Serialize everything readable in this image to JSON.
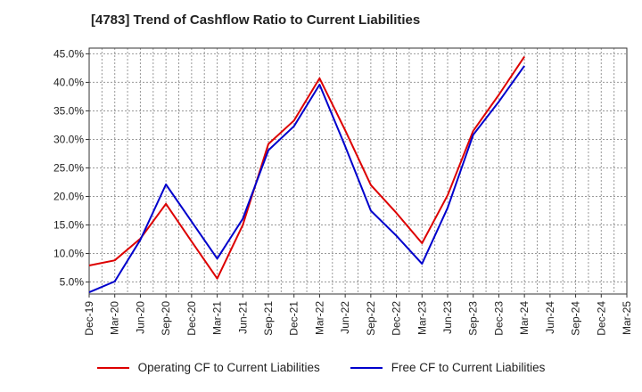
{
  "title": "[4783]  Trend of Cashflow Ratio to Current Liabilities",
  "chart_data": {
    "type": "line",
    "title": "[4783]  Trend of Cashflow Ratio to Current Liabilities",
    "categories": [
      "Dec-19",
      "Mar-20",
      "Jun-20",
      "Sep-20",
      "Dec-20",
      "Mar-21",
      "Jun-21",
      "Sep-21",
      "Dec-21",
      "Mar-22",
      "Jun-22",
      "Sep-22",
      "Dec-22",
      "Mar-23",
      "Jun-23",
      "Sep-23",
      "Dec-23",
      "Mar-24",
      "Jun-24",
      "Sep-24",
      "Dec-24",
      "Mar-25"
    ],
    "ylim": [
      2.9,
      46.0
    ],
    "yticks": [
      "5.0%",
      "10.0%",
      "15.0%",
      "20.0%",
      "25.0%",
      "30.0%",
      "35.0%",
      "40.0%",
      "45.0%"
    ],
    "ytick_values": [
      5,
      10,
      15,
      20,
      25,
      30,
      35,
      40,
      45
    ],
    "grid": true,
    "legend_position": "bottom",
    "series": [
      {
        "name": "Operating CF to Current Liabilities",
        "color": "#dd0000",
        "values": [
          7.9,
          8.8,
          12.6,
          18.7,
          12.1,
          5.6,
          15.0,
          29.2,
          33.3,
          40.7,
          31.6,
          22.0,
          17.1,
          11.8,
          20.2,
          31.5,
          37.8,
          44.5,
          null,
          null,
          null,
          null
        ]
      },
      {
        "name": "Free CF to Current Liabilities",
        "color": "#0000cc",
        "values": [
          3.2,
          5.1,
          12.4,
          22.1,
          15.6,
          9.1,
          16.1,
          28.1,
          32.3,
          39.6,
          28.8,
          17.5,
          13.1,
          8.2,
          18.0,
          30.8,
          36.6,
          42.9,
          null,
          null,
          null,
          null
        ]
      }
    ]
  }
}
